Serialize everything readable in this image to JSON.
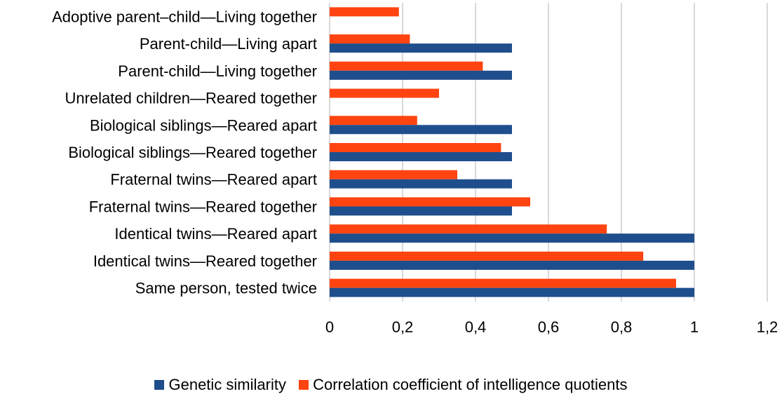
{
  "chart_data": {
    "type": "bar",
    "orientation": "horizontal",
    "categories": [
      "Same person, tested twice",
      "Identical twins—Reared together",
      "Identical twins—Reared apart",
      "Fraternal twins—Reared together",
      "Fraternal twins—Reared apart",
      "Biological siblings—Reared together",
      "Biological siblings—Reared apart",
      "Unrelated children—Reared together",
      "Parent-child—Living together",
      "Parent-child—Living apart",
      "Adoptive parent–child—Living together"
    ],
    "series": [
      {
        "name": "Genetic similarity",
        "color": "#1f4e8c",
        "values": [
          1,
          1,
          1,
          0.5,
          0.5,
          0.5,
          0.5,
          0,
          0.5,
          0.5,
          0
        ]
      },
      {
        "name": "Correlation coefficient of intelligence quotients",
        "color": "#ff4411",
        "values": [
          0.95,
          0.86,
          0.76,
          0.55,
          0.35,
          0.47,
          0.24,
          0.3,
          0.42,
          0.22,
          0.19
        ]
      }
    ],
    "xlim": [
      0,
      1.2
    ],
    "xticks": [
      "0",
      "0,2",
      "0,4",
      "0,6",
      "0,8",
      "1",
      "1,2"
    ],
    "grid": "vertical",
    "legend": "bottom-center"
  }
}
